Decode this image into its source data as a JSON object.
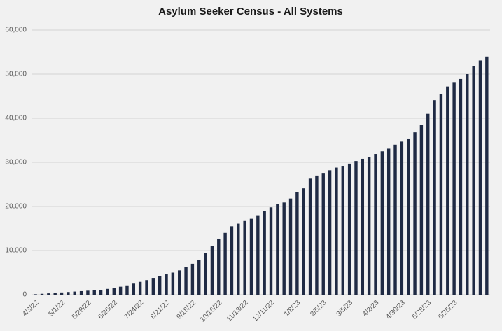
{
  "chart_data": {
    "type": "bar",
    "title": "Asylum Seeker Census - All Systems",
    "categories": [
      "4/3/22",
      null,
      null,
      null,
      "5/1/22",
      null,
      null,
      null,
      "5/29/22",
      null,
      null,
      null,
      "6/26/22",
      null,
      null,
      null,
      "7/24/22",
      null,
      null,
      null,
      "8/21/22",
      null,
      null,
      null,
      "9/18/22",
      null,
      null,
      null,
      "10/16/22",
      null,
      null,
      null,
      "11/13/22",
      null,
      null,
      null,
      "12/11/22",
      null,
      null,
      null,
      "1/8/23",
      null,
      null,
      null,
      "2/5/23",
      null,
      null,
      null,
      "3/5/23",
      null,
      null,
      null,
      "4/2/23",
      null,
      null,
      null,
      "4/30/23",
      null,
      null,
      null,
      "5/28/23",
      null,
      null,
      null,
      "6/25/23",
      null,
      null,
      null,
      null,
      null
    ],
    "values": [
      100,
      200,
      300,
      400,
      500,
      600,
      700,
      800,
      900,
      1000,
      1100,
      1300,
      1500,
      1800,
      2100,
      2500,
      2900,
      3300,
      3800,
      4200,
      4600,
      5000,
      5500,
      6200,
      7000,
      7800,
      9500,
      11000,
      12700,
      14000,
      15500,
      16100,
      16700,
      17200,
      18000,
      18900,
      19800,
      20500,
      20900,
      21800,
      23300,
      24100,
      26300,
      27000,
      27600,
      28200,
      28800,
      29200,
      29700,
      30300,
      30800,
      31200,
      31900,
      32500,
      33100,
      34000,
      34700,
      35400,
      36800,
      38500,
      41000,
      44100,
      45500,
      47200,
      48200,
      48900,
      50000,
      51800,
      53100,
      54000
    ],
    "color": "#1f2a44",
    "ylim": [
      0,
      60000
    ],
    "yticks": [
      0,
      {
        "value": 10000,
        "label": "10,000"
      },
      {
        "value": 20000,
        "label": "20,000"
      },
      {
        "value": 30000,
        "label": "30,000"
      },
      {
        "value": 40000,
        "label": "40,000"
      },
      {
        "value": 50000,
        "label": "50,000"
      },
      {
        "value": 60000,
        "label": "60,000"
      }
    ],
    "grid": true
  }
}
